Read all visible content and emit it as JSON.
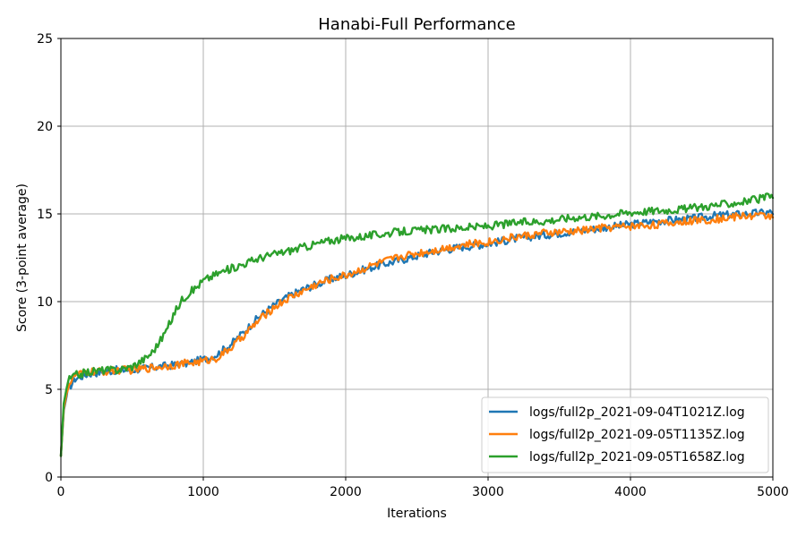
{
  "chart_data": {
    "type": "line",
    "title": "Hanabi-Full Performance",
    "xlabel": "Iterations",
    "ylabel": "Score (3-point average)",
    "xlim": [
      0,
      5000
    ],
    "ylim": [
      0,
      25
    ],
    "xticks": [
      0,
      1000,
      2000,
      3000,
      4000,
      5000
    ],
    "yticks": [
      0,
      5,
      10,
      15,
      20,
      25
    ],
    "grid": true,
    "legend_position": "bottom-right",
    "series": [
      {
        "name": "logs/full2p_2021-09-04T1021Z.log",
        "color": "#1f77b4",
        "points": [
          [
            0,
            1.2
          ],
          [
            20,
            3.8
          ],
          [
            50,
            5.0
          ],
          [
            100,
            5.6
          ],
          [
            200,
            5.9
          ],
          [
            300,
            6.0
          ],
          [
            400,
            6.1
          ],
          [
            500,
            6.1
          ],
          [
            600,
            6.2
          ],
          [
            700,
            6.3
          ],
          [
            800,
            6.4
          ],
          [
            900,
            6.5
          ],
          [
            1000,
            6.7
          ],
          [
            1100,
            7.0
          ],
          [
            1200,
            7.6
          ],
          [
            1300,
            8.4
          ],
          [
            1400,
            9.2
          ],
          [
            1500,
            9.8
          ],
          [
            1600,
            10.3
          ],
          [
            1700,
            10.7
          ],
          [
            1800,
            11.0
          ],
          [
            1900,
            11.3
          ],
          [
            2000,
            11.5
          ],
          [
            2200,
            12.0
          ],
          [
            2400,
            12.4
          ],
          [
            2600,
            12.8
          ],
          [
            2800,
            13.1
          ],
          [
            3000,
            13.3
          ],
          [
            3200,
            13.6
          ],
          [
            3400,
            13.8
          ],
          [
            3600,
            14.0
          ],
          [
            3800,
            14.2
          ],
          [
            4000,
            14.4
          ],
          [
            4200,
            14.6
          ],
          [
            4400,
            14.7
          ],
          [
            4600,
            14.9
          ],
          [
            4800,
            15.0
          ],
          [
            5000,
            15.1
          ]
        ]
      },
      {
        "name": "logs/full2p_2021-09-05T1135Z.log",
        "color": "#ff7f0e",
        "points": [
          [
            0,
            1.2
          ],
          [
            20,
            3.9
          ],
          [
            50,
            5.2
          ],
          [
            100,
            5.8
          ],
          [
            200,
            6.0
          ],
          [
            300,
            6.0
          ],
          [
            400,
            6.1
          ],
          [
            500,
            6.1
          ],
          [
            600,
            6.2
          ],
          [
            700,
            6.3
          ],
          [
            800,
            6.4
          ],
          [
            900,
            6.5
          ],
          [
            1000,
            6.6
          ],
          [
            1100,
            6.8
          ],
          [
            1200,
            7.4
          ],
          [
            1300,
            8.2
          ],
          [
            1400,
            9.0
          ],
          [
            1500,
            9.7
          ],
          [
            1600,
            10.2
          ],
          [
            1700,
            10.6
          ],
          [
            1800,
            11.0
          ],
          [
            1900,
            11.3
          ],
          [
            2000,
            11.5
          ],
          [
            2200,
            12.1
          ],
          [
            2400,
            12.6
          ],
          [
            2600,
            12.9
          ],
          [
            2800,
            13.2
          ],
          [
            3000,
            13.4
          ],
          [
            3200,
            13.7
          ],
          [
            3400,
            13.9
          ],
          [
            3600,
            14.0
          ],
          [
            3800,
            14.2
          ],
          [
            4000,
            14.3
          ],
          [
            4200,
            14.4
          ],
          [
            4400,
            14.6
          ],
          [
            4600,
            14.7
          ],
          [
            4800,
            14.9
          ],
          [
            5000,
            14.9
          ]
        ]
      },
      {
        "name": "logs/full2p_2021-09-05T1658Z.log",
        "color": "#2ca02c",
        "points": [
          [
            0,
            1.2
          ],
          [
            20,
            4.2
          ],
          [
            50,
            5.5
          ],
          [
            100,
            5.8
          ],
          [
            200,
            6.0
          ],
          [
            300,
            6.1
          ],
          [
            400,
            6.1
          ],
          [
            500,
            6.3
          ],
          [
            600,
            6.8
          ],
          [
            650,
            7.2
          ],
          [
            700,
            7.8
          ],
          [
            750,
            8.5
          ],
          [
            800,
            9.4
          ],
          [
            850,
            10.1
          ],
          [
            900,
            10.5
          ],
          [
            950,
            10.8
          ],
          [
            1000,
            11.2
          ],
          [
            1100,
            11.6
          ],
          [
            1200,
            11.9
          ],
          [
            1300,
            12.2
          ],
          [
            1400,
            12.5
          ],
          [
            1500,
            12.7
          ],
          [
            1600,
            12.9
          ],
          [
            1700,
            13.1
          ],
          [
            1800,
            13.3
          ],
          [
            1900,
            13.5
          ],
          [
            2000,
            13.6
          ],
          [
            2200,
            13.8
          ],
          [
            2400,
            14.0
          ],
          [
            2600,
            14.1
          ],
          [
            2800,
            14.2
          ],
          [
            3000,
            14.3
          ],
          [
            3200,
            14.5
          ],
          [
            3400,
            14.6
          ],
          [
            3600,
            14.8
          ],
          [
            3800,
            14.9
          ],
          [
            4000,
            15.1
          ],
          [
            4200,
            15.2
          ],
          [
            4400,
            15.3
          ],
          [
            4600,
            15.5
          ],
          [
            4800,
            15.7
          ],
          [
            5000,
            16.0
          ]
        ]
      }
    ]
  }
}
